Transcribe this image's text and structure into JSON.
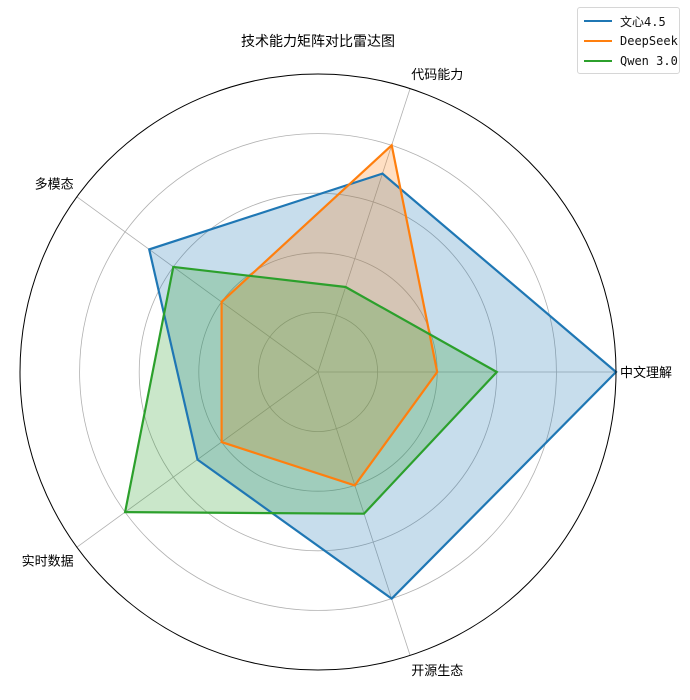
{
  "chart_data": {
    "type": "radar",
    "title": "技术能力矩阵对比雷达图",
    "axes": [
      "中文理解",
      "代码能力",
      "多模态",
      "实时数据",
      "开源生态"
    ],
    "rlim": [
      0,
      10
    ],
    "grid": true,
    "legend_position": "top-right",
    "series": [
      {
        "name": "文心4.5",
        "color": "#1f77b4",
        "values": [
          10,
          7,
          7,
          5,
          8
        ]
      },
      {
        "name": "DeepSeek",
        "color": "#ff7f0e",
        "values": [
          4,
          8,
          4,
          4,
          4
        ]
      },
      {
        "name": "Qwen 3.0",
        "color": "#2ca02c",
        "values": [
          6,
          3,
          6,
          8,
          5
        ]
      }
    ]
  }
}
